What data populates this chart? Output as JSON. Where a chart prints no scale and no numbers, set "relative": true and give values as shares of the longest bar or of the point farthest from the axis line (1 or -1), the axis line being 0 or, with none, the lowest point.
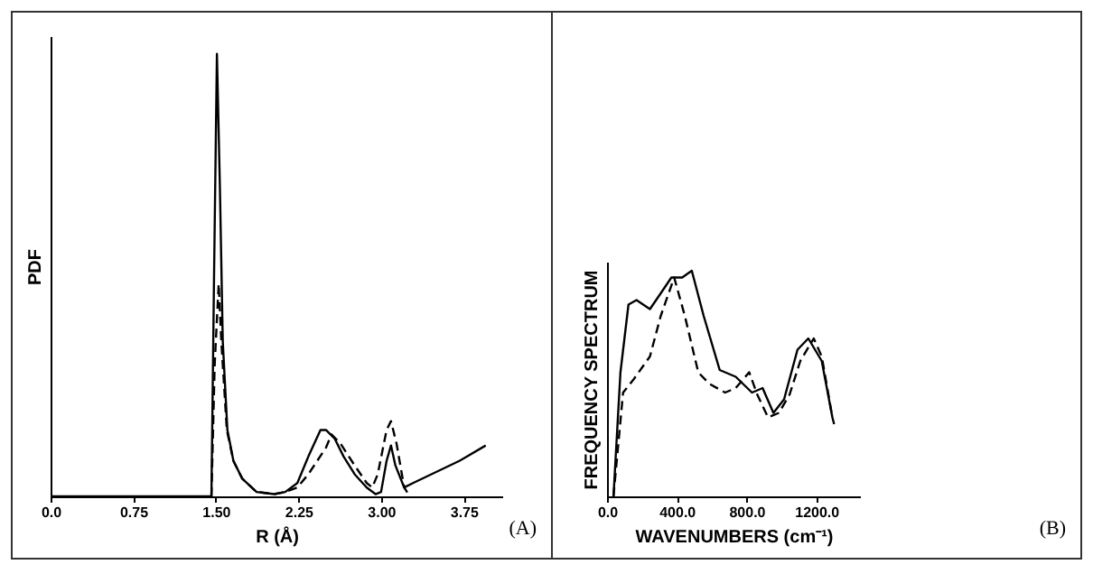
{
  "chart_data": [
    {
      "type": "line",
      "xlabel": "R (Å)",
      "ylabel": "PDF",
      "relative": true,
      "annotations": [
        "(A)"
      ],
      "xlim": [
        0,
        4.1
      ],
      "xticks": [
        {
          "value": 0,
          "label": "0.0"
        },
        {
          "value": 0.75,
          "label": "0.75"
        },
        {
          "value": 1.5,
          "label": "1.50"
        },
        {
          "value": 2.25,
          "label": "2.25"
        },
        {
          "value": 3,
          "label": "3.00"
        },
        {
          "value": 3.75,
          "label": "3.75"
        }
      ],
      "series": [
        {
          "color": "#000000",
          "line_style": "solid",
          "x": [
            0,
            1.447,
            1.46,
            1.484,
            1.51,
            1.537,
            1.563,
            1.605,
            1.66,
            1.74,
            1.87,
            2.03,
            2.13,
            2.24,
            2.34,
            2.45,
            2.5,
            2.58,
            2.66,
            2.76,
            2.87,
            2.95,
            3.0,
            3.05,
            3.09,
            3.13,
            3.21,
            3.29,
            3.5,
            3.71,
            3.95
          ],
          "values": [
            0,
            0,
            0,
            0.5,
            1.0,
            0.7,
            0.35,
            0.15,
            0.08,
            0.04,
            0.01,
            0.005,
            0.01,
            0.03,
            0.09,
            0.15,
            0.15,
            0.13,
            0.09,
            0.05,
            0.02,
            0.005,
            0.01,
            0.08,
            0.115,
            0.07,
            0.02,
            0.03,
            0.055,
            0.08,
            0.115
          ]
        },
        {
          "color": "#000000",
          "line_style": "dashed",
          "x": [
            1.46,
            1.49,
            1.526,
            1.55,
            1.6,
            1.66,
            1.74,
            1.87,
            2.03,
            2.13,
            2.24,
            2.34,
            2.5,
            2.55,
            2.63,
            2.76,
            2.87,
            2.92,
            2.97,
            3.05,
            3.09,
            3.14,
            3.21,
            3.26
          ],
          "values": [
            0,
            0.3,
            0.48,
            0.35,
            0.15,
            0.08,
            0.04,
            0.01,
            0.005,
            0.01,
            0.02,
            0.05,
            0.11,
            0.14,
            0.12,
            0.07,
            0.03,
            0.02,
            0.05,
            0.15,
            0.17,
            0.12,
            0.02,
            0
          ]
        }
      ]
    },
    {
      "type": "line",
      "xlabel": "WAVENUMBERS (cm⁻¹)",
      "ylabel": "FREQUENCY SPECTRUM",
      "relative": true,
      "annotations": [
        "(B)"
      ],
      "xlim": [
        0,
        1450
      ],
      "xticks": [
        {
          "value": 0,
          "label": "0.0"
        },
        {
          "value": 400,
          "label": "400.0"
        },
        {
          "value": 800,
          "label": "800.0"
        },
        {
          "value": 1200,
          "label": "1200.0"
        }
      ],
      "series": [
        {
          "color": "#000000",
          "line_style": "solid",
          "x": [
            37,
            77,
            123,
            169,
            246,
            308,
            369,
            431,
            486,
            554,
            646,
            738,
            831,
            892,
            954,
            1015,
            1092,
            1154,
            1231,
            1292,
            1302
          ],
          "values": [
            0,
            0.55,
            0.85,
            0.87,
            0.83,
            0.9,
            0.97,
            0.97,
            1.0,
            0.8,
            0.56,
            0.53,
            0.46,
            0.48,
            0.37,
            0.43,
            0.65,
            0.7,
            0.6,
            0.35,
            0.32
          ]
        },
        {
          "color": "#000000",
          "line_style": "dashed",
          "x": [
            37,
            92,
            154,
            246,
            308,
            385,
            446,
            523,
            585,
            677,
            738,
            815,
            862,
            923,
            985,
            1046,
            1108,
            1185,
            1231,
            1292
          ],
          "values": [
            0,
            0.46,
            0.52,
            0.62,
            0.8,
            0.97,
            0.8,
            0.55,
            0.5,
            0.46,
            0.48,
            0.55,
            0.45,
            0.35,
            0.37,
            0.45,
            0.6,
            0.7,
            0.62,
            0.35
          ]
        }
      ]
    }
  ]
}
